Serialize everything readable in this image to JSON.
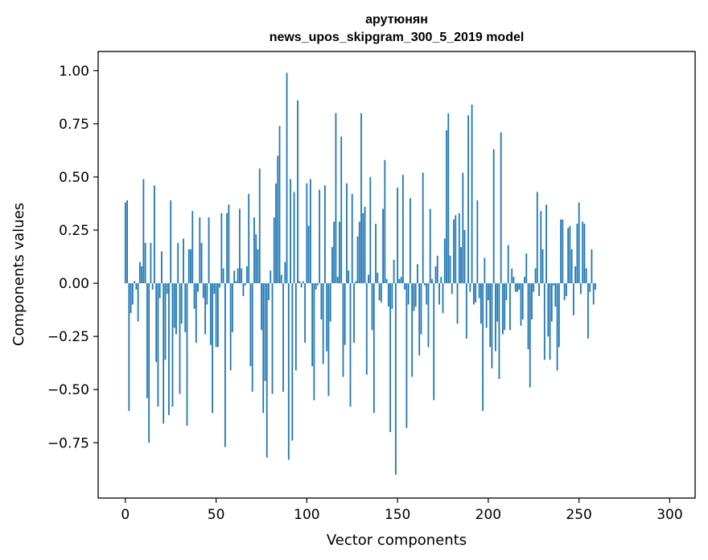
{
  "chart_data": {
    "type": "bar",
    "title_line1": "арутюнян",
    "title_line2": "news_upos_skipgram_300_5_2019 model",
    "xlabel": "Vector components",
    "ylabel": "Components values",
    "xlim": [
      -15,
      314
    ],
    "ylim": [
      -1.01,
      1.09
    ],
    "xticks": [
      {
        "value": 0,
        "label": "0"
      },
      {
        "value": 50,
        "label": "50"
      },
      {
        "value": 100,
        "label": "100"
      },
      {
        "value": 150,
        "label": "150"
      },
      {
        "value": 200,
        "label": "200"
      },
      {
        "value": 250,
        "label": "250"
      },
      {
        "value": 300,
        "label": "300"
      }
    ],
    "yticks": [
      {
        "value": 1.0,
        "label": "1.00"
      },
      {
        "value": 0.75,
        "label": "0.75"
      },
      {
        "value": 0.5,
        "label": "0.50"
      },
      {
        "value": 0.25,
        "label": "0.25"
      },
      {
        "value": 0.0,
        "label": "0.00"
      },
      {
        "value": -0.25,
        "label": "−0.25"
      },
      {
        "value": -0.5,
        "label": "−0.50"
      },
      {
        "value": -0.75,
        "label": "−0.75"
      }
    ],
    "bar_color": "#1f77b4",
    "values": [
      0.38,
      0.39,
      -0.6,
      -0.14,
      -0.1,
      0.01,
      -0.03,
      -0.18,
      0.1,
      0.08,
      0.49,
      0.19,
      -0.54,
      -0.75,
      0.19,
      -0.03,
      0.46,
      -0.37,
      -0.58,
      -0.07,
      0.15,
      -0.66,
      -0.36,
      -0.05,
      -0.62,
      0.39,
      -0.58,
      -0.21,
      -0.24,
      0.19,
      -0.52,
      -0.19,
      0.21,
      -0.23,
      -0.67,
      0.16,
      0.16,
      0.34,
      -0.12,
      -0.28,
      -0.04,
      0.31,
      0.19,
      -0.07,
      -0.24,
      -0.1,
      0.31,
      -0.29,
      -0.61,
      -0.05,
      -0.3,
      -0.3,
      -0.02,
      0.33,
      0.07,
      -0.77,
      0.33,
      0.37,
      -0.41,
      -0.23,
      0.06,
      0.01,
      0.07,
      0.35,
      0.07,
      -0.06,
      -0.01,
      0.08,
      0.42,
      -0.39,
      -0.51,
      0.31,
      0.23,
      0.16,
      0.54,
      -0.22,
      -0.61,
      -0.46,
      -0.82,
      -0.08,
      0.06,
      -0.52,
      0.31,
      0.47,
      0.6,
      0.74,
      0.04,
      -0.51,
      0.1,
      0.99,
      -0.83,
      0.49,
      -0.74,
      0.43,
      -0.41,
      0.86,
      0.01,
      -0.02,
      0.01,
      -0.28,
      0.47,
      0.27,
      0.49,
      -0.39,
      -0.55,
      -0.03,
      -0.01,
      0.44,
      -0.17,
      -0.38,
      0.46,
      -0.32,
      -0.53,
      -0.18,
      0.17,
      0.29,
      0.8,
      0.03,
      0.29,
      0.69,
      -0.44,
      -0.29,
      0.47,
      0.06,
      -0.58,
      0.42,
      -0.28,
      0.01,
      0.22,
      0.29,
      0.8,
      0.33,
      0.36,
      -0.43,
      0.04,
      0.5,
      -0.22,
      -0.61,
      0.28,
      0.05,
      -0.08,
      -0.09,
      0.35,
      0.58,
      0.02,
      -0.11,
      -0.7,
      -0.12,
      0.11,
      -0.9,
      0.45,
      0.02,
      0.03,
      0.51,
      -0.03,
      -0.68,
      -0.1,
      0.4,
      -0.44,
      -0.13,
      -0.11,
      0.09,
      -0.34,
      -0.24,
      0.52,
      -0.01,
      -0.1,
      -0.3,
      0.35,
      0.02,
      -0.55,
      0.08,
      0.13,
      -0.1,
      0.03,
      -0.14,
      0.21,
      0.72,
      0.8,
      0.13,
      -0.05,
      0.3,
      0.32,
      -0.19,
      0.33,
      0.17,
      0.52,
      0.25,
      -0.26,
      0.79,
      -0.04,
      0.84,
      -0.1,
      -0.09,
      0.39,
      -0.07,
      -0.19,
      -0.6,
      0.12,
      -0.21,
      -0.08,
      -0.3,
      -0.4,
      0.63,
      -0.32,
      -0.18,
      -0.45,
      0.71,
      -0.24,
      -0.22,
      -0.08,
      0.18,
      -0.22,
      0.07,
      0.03,
      -0.04,
      -0.04,
      -0.03,
      -0.2,
      -0.17,
      0.03,
      0.14,
      -0.31,
      -0.49,
      -0.17,
      -0.04,
      0.07,
      0.43,
      -0.06,
      0.34,
      0.16,
      -0.36,
      0.37,
      -0.25,
      -0.36,
      -0.18,
      -0.01,
      -0.11,
      -0.41,
      -0.3,
      0.3,
      0.3,
      -0.08,
      -0.06,
      0.26,
      0.27,
      0.16,
      -0.15,
      0.08,
      0.28,
      0.38,
      -0.05,
      0.29,
      0.28,
      0.07,
      -0.26,
      -0.04,
      0.16,
      -0.1,
      -0.03
    ]
  }
}
